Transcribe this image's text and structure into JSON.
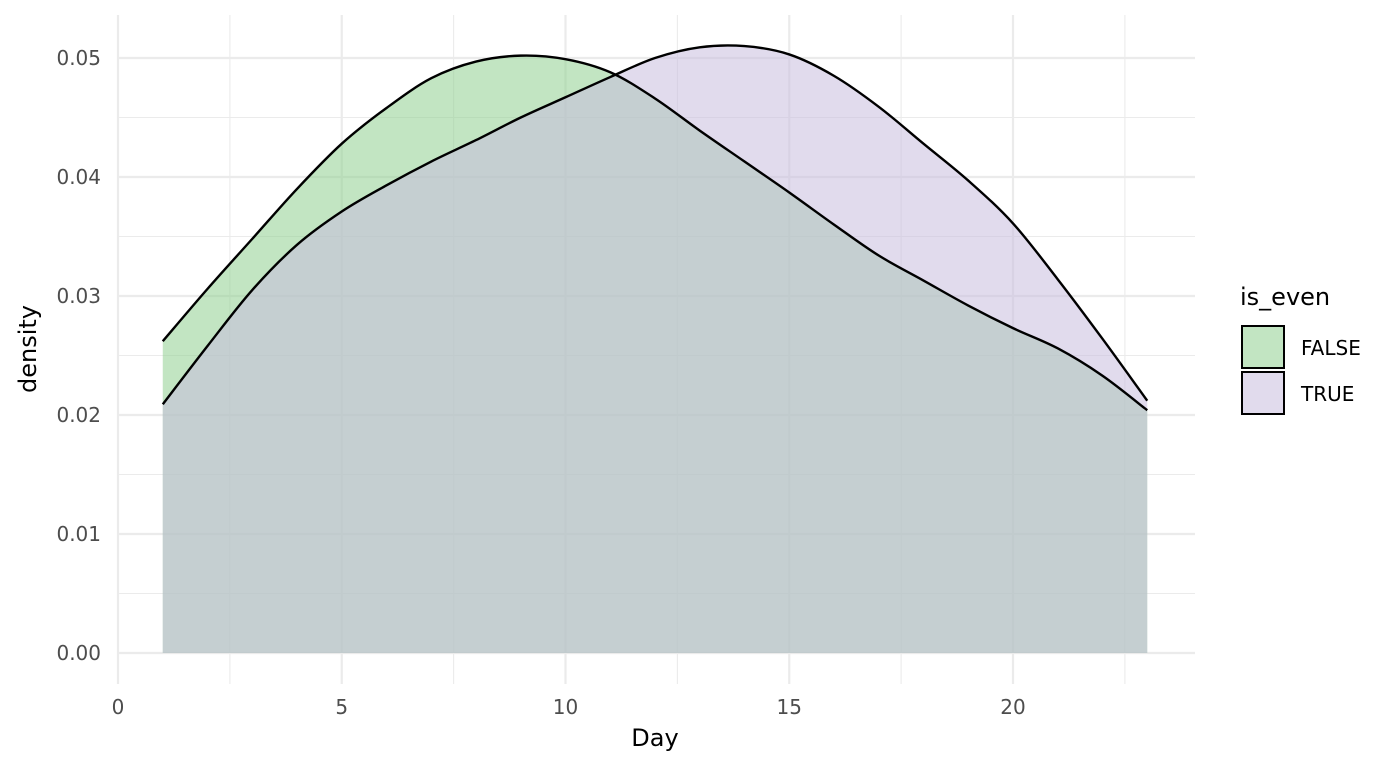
{
  "chart_data": {
    "type": "area",
    "subtype": "density",
    "title": "",
    "xlabel": "Day",
    "ylabel": "density",
    "xlim": [
      0,
      24
    ],
    "ylim": [
      0,
      0.053
    ],
    "x_ticks": [
      0,
      5,
      10,
      15,
      20
    ],
    "x_tick_labels": [
      "0",
      "5",
      "10",
      "15",
      "20"
    ],
    "y_ticks": [
      0,
      0.01,
      0.02,
      0.03,
      0.04,
      0.05
    ],
    "y_tick_labels": [
      "0.00",
      "0.01",
      "0.02",
      "0.03",
      "0.04",
      "0.05"
    ],
    "grid": true,
    "legend": {
      "title": "is_even",
      "position": "right"
    },
    "series": [
      {
        "name": "FALSE",
        "color": "#8fd08f",
        "x": [
          1,
          2,
          3,
          4,
          5,
          6,
          7,
          8,
          9,
          10,
          11,
          12,
          13,
          14,
          15,
          16,
          17,
          18,
          19,
          20,
          21,
          22,
          23
        ],
        "y": [
          0.0262,
          0.0306,
          0.0348,
          0.039,
          0.0428,
          0.0458,
          0.0483,
          0.0497,
          0.0502,
          0.0499,
          0.0488,
          0.0466,
          0.0439,
          0.0413,
          0.0387,
          0.036,
          0.0334,
          0.0313,
          0.0292,
          0.0273,
          0.0256,
          0.0233,
          0.0204
        ]
      },
      {
        "name": "TRUE",
        "color": "#c8bedf",
        "x": [
          1,
          2,
          3,
          4,
          5,
          6,
          7,
          8,
          9,
          10,
          11,
          12,
          13,
          14,
          15,
          16,
          17,
          18,
          19,
          20,
          21,
          22,
          23
        ],
        "y": [
          0.0209,
          0.0258,
          0.0305,
          0.0343,
          0.0371,
          0.0393,
          0.0413,
          0.0431,
          0.045,
          0.0467,
          0.0484,
          0.05,
          0.0509,
          0.051,
          0.0503,
          0.0485,
          0.0459,
          0.0428,
          0.0397,
          0.0361,
          0.0314,
          0.0264,
          0.0212
        ]
      }
    ]
  }
}
